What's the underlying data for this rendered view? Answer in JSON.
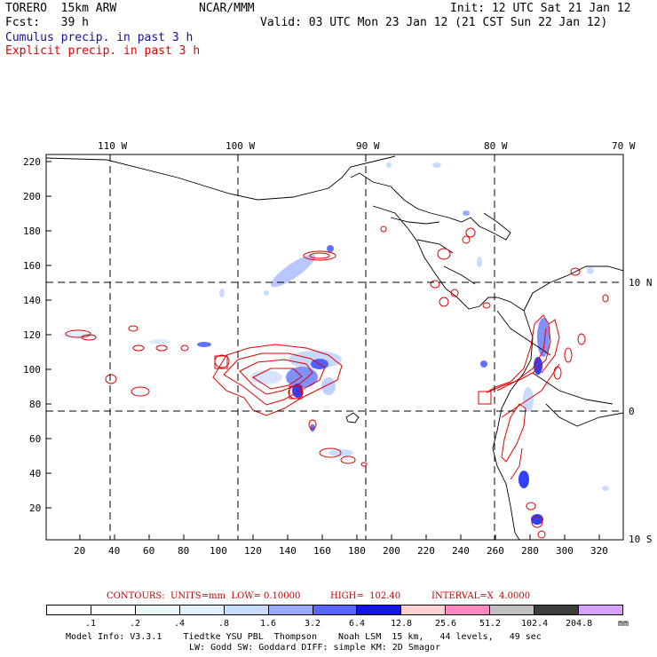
{
  "header": {
    "model": "TORERO  15km ARW",
    "center": "NCAR/MMM",
    "init": "Init: 12 UTC Sat 21 Jan 12",
    "fcst": "Fcst:   39 h",
    "valid": "Valid: 03 UTC Mon 23 Jan 12 (21 CST Sun 22 Jan 12)",
    "field1": "Cumulus precip. in past 3 h",
    "field2": "Explicit precip. in past 3 h",
    "field1_color": "#1010a0",
    "field2_color": "#e00000"
  },
  "map": {
    "lon_labels": [
      "110 W",
      "100 W",
      "90 W",
      "80 W",
      "70 W"
    ],
    "lat_labels": [
      "10 N",
      "0",
      "10 S"
    ],
    "y_ticks": [
      "220",
      "200",
      "180",
      "160",
      "140",
      "120",
      "100",
      "80",
      "60",
      "40",
      "20"
    ],
    "x_ticks": [
      "20",
      "40",
      "60",
      "80",
      "100",
      "120",
      "140",
      "160",
      "180",
      "200",
      "220",
      "240",
      "260",
      "280",
      "300",
      "320"
    ],
    "grid_style": "dashed",
    "x_range": [
      0,
      335
    ],
    "y_range": [
      0,
      224
    ]
  },
  "contour_info": {
    "contours": "CONTOURS:  UNITS=mm  LOW= 0.10000",
    "high": "HIGH=  102.40",
    "interval": "INTERVAL=X  4.0000",
    "color": "#c00000"
  },
  "legend": {
    "labels": [
      ".1",
      ".2",
      ".4",
      ".8",
      "1.6",
      "3.2",
      "6.4",
      "12.8",
      "25.6",
      "51.2",
      "102.4",
      "204.8"
    ],
    "units": "mm",
    "colors": [
      "#ffffff",
      "#ffffff",
      "#e8f8f8",
      "#e0f0ff",
      "#c8dcff",
      "#9aa8ff",
      "#5a64ff",
      "#1414e8",
      "#ffd0d0",
      "#ff88c0",
      "#c0c0c0",
      "#3c3c3c",
      "#d8a0ff"
    ]
  },
  "footer": {
    "line1": "Model Info: V3.3.1    Tiedtke YSU PBL  Thompson    Noah LSM  15 km,   44 levels,   49 sec",
    "line2": "LW: Godd SW: Goddard DIFF: simple KM: 2D Smagor"
  }
}
